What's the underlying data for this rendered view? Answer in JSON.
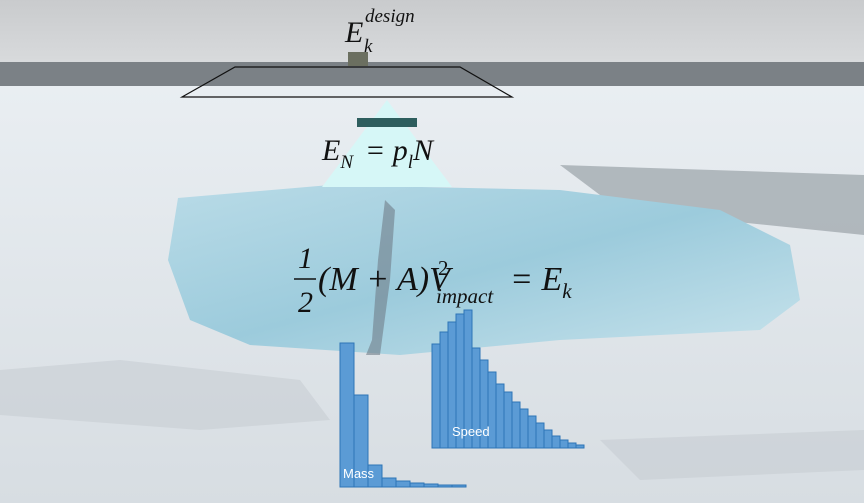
{
  "design_energy": {
    "symbol": "E",
    "subscript": "k",
    "superscript": "design"
  },
  "normal_energy": {
    "lhs": "E",
    "lhs_sub": "N",
    "rhs": "= p",
    "rhs_sub": "l",
    "rhs_end": "N"
  },
  "impact_energy": {
    "numerator": "1",
    "denominator": "2",
    "body": "(M + A)V",
    "sup": "2",
    "sub": "impact",
    "rhs": "= E",
    "rhs_sub": "k"
  },
  "histograms": [
    {
      "label": "Mass",
      "values": [
        144,
        92,
        22,
        9,
        6,
        4,
        3,
        2,
        2
      ]
    },
    {
      "label": "Speed",
      "values": [
        104,
        116,
        126,
        134,
        138,
        100,
        88,
        76,
        64,
        56,
        46,
        39,
        32,
        25,
        18,
        12,
        8,
        5,
        3
      ]
    }
  ]
}
